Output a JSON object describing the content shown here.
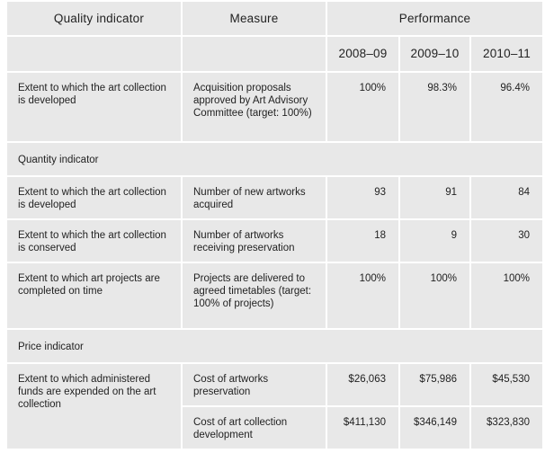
{
  "headers": {
    "quality_indicator": "Quality indicator",
    "measure": "Measure",
    "performance": "Performance",
    "years": [
      "2008–09",
      "2009–10",
      "2010–11"
    ]
  },
  "rows": [
    {
      "indicator": "Extent to which the art collection is developed",
      "measure": "Acquisition proposals approved by Art Advisory Committee (target: 100%)",
      "values": [
        "100%",
        "98.3%",
        "96.4%"
      ]
    }
  ],
  "section_quantity": "Quantity indicator",
  "quantity_rows": [
    {
      "indicator": "Extent to which the art collection is developed",
      "measure": "Number of new artworks acquired",
      "values": [
        "93",
        "91",
        "84"
      ]
    },
    {
      "indicator": "Extent to which the art collection is conserved",
      "measure": "Number of artworks receiving preservation",
      "values": [
        "18",
        "9",
        "30"
      ]
    },
    {
      "indicator": "Extent to which art projects are completed on time",
      "measure": "Projects are delivered to agreed timetables (target: 100% of projects)",
      "values": [
        "100%",
        "100%",
        "100%"
      ]
    }
  ],
  "section_price": "Price indicator",
  "price_rows": {
    "indicator": "Extent to which administered funds are expended on the art collection",
    "items": [
      {
        "measure": "Cost of artworks preservation",
        "values": [
          "$26,063",
          "$75,986",
          "$45,530"
        ]
      },
      {
        "measure": "Cost of art collection development",
        "values": [
          "$411,130",
          "$346,149",
          "$323,830"
        ]
      }
    ]
  }
}
